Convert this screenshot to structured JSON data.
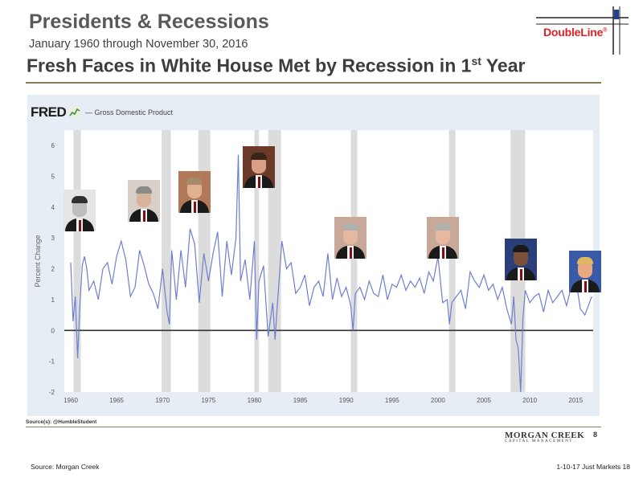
{
  "slide": {
    "title": "Presidents & Recessions",
    "subtitle": "January 1960 through November 30, 2016",
    "logo_text": "DoubleLine",
    "logo_reg": "®"
  },
  "panel": {
    "headline_main": "Fresh Faces in White House Met by Recession in 1",
    "headline_sup": "st",
    "headline_end": " Year",
    "fred_label": "FRED",
    "series_legend": "— Gross Domestic Product",
    "source_text": "Source(s): @HumbleStudent",
    "mc_name": "MORGAN CREEK",
    "mc_sub": "CAPITAL MANAGEMENT",
    "page_number": "8"
  },
  "footer": {
    "source": "Source:  Morgan Creek",
    "right_text": "1-10-17 Just Markets  18"
  },
  "colors": {
    "line": "#6f7fcf",
    "recession": "#dcdcdc",
    "plot_bg": "#e7edf5",
    "zero_line": "#333333",
    "logo_red": "#e01f26"
  },
  "chart_data": {
    "type": "line",
    "title": "",
    "xlabel": "",
    "ylabel": "Percent Change",
    "xlim": [
      1959.3,
      2016.9
    ],
    "ylim": [
      -2,
      6.5
    ],
    "yticks": [
      -2,
      -1,
      0,
      1,
      2,
      3,
      4,
      5,
      6
    ],
    "xticks": [
      1960,
      1965,
      1970,
      1975,
      1980,
      1985,
      1990,
      1995,
      2000,
      2005,
      2010,
      2015
    ],
    "grid": false,
    "legend": "top-left",
    "series": [
      {
        "name": "Gross Domestic Product",
        "x": [
          1960.0,
          1960.25,
          1960.5,
          1960.75,
          1961.0,
          1961.25,
          1961.5,
          1961.75,
          1962.0,
          1962.5,
          1963.0,
          1963.5,
          1964.0,
          1964.5,
          1965.0,
          1965.5,
          1966.0,
          1966.5,
          1967.0,
          1967.5,
          1968.0,
          1968.5,
          1969.0,
          1969.5,
          1970.0,
          1970.5,
          1970.75,
          1971.0,
          1971.5,
          1972.0,
          1972.5,
          1973.0,
          1973.5,
          1974.0,
          1974.5,
          1975.0,
          1975.5,
          1976.0,
          1976.5,
          1977.0,
          1977.5,
          1978.0,
          1978.25,
          1978.5,
          1979.0,
          1979.5,
          1980.0,
          1980.25,
          1980.5,
          1981.0,
          1981.5,
          1982.0,
          1982.25,
          1982.5,
          1983.0,
          1983.5,
          1984.0,
          1984.5,
          1985.0,
          1985.5,
          1986.0,
          1986.5,
          1987.0,
          1987.5,
          1988.0,
          1988.5,
          1989.0,
          1989.5,
          1990.0,
          1990.5,
          1990.75,
          1991.0,
          1991.5,
          1992.0,
          1992.5,
          1993.0,
          1993.5,
          1994.0,
          1994.5,
          1995.0,
          1995.5,
          1996.0,
          1996.5,
          1997.0,
          1997.5,
          1998.0,
          1998.5,
          1999.0,
          1999.5,
          2000.0,
          2000.5,
          2001.0,
          2001.25,
          2001.5,
          2002.0,
          2002.5,
          2003.0,
          2003.5,
          2004.0,
          2004.5,
          2005.0,
          2005.5,
          2006.0,
          2006.5,
          2007.0,
          2007.5,
          2008.0,
          2008.25,
          2008.5,
          2008.75,
          2009.0,
          2009.25,
          2009.5,
          2010.0,
          2010.5,
          2011.0,
          2011.5,
          2012.0,
          2012.5,
          2013.0,
          2013.5,
          2014.0,
          2014.5,
          2015.0,
          2015.5,
          2016.0,
          2016.5,
          2016.75
        ],
        "y": [
          2.2,
          0.3,
          1.1,
          -0.9,
          0.8,
          2.1,
          2.4,
          2.0,
          1.3,
          1.6,
          1.0,
          2.0,
          2.2,
          1.5,
          2.4,
          2.9,
          2.3,
          1.1,
          1.4,
          2.6,
          2.1,
          1.5,
          1.2,
          0.7,
          2.0,
          0.6,
          0.2,
          2.6,
          1.0,
          2.6,
          1.4,
          3.3,
          2.8,
          0.9,
          2.5,
          1.6,
          2.5,
          3.2,
          1.1,
          2.9,
          1.8,
          3.0,
          5.7,
          1.6,
          2.3,
          1.0,
          2.9,
          -0.3,
          1.6,
          2.1,
          -0.2,
          0.9,
          -0.3,
          0.8,
          2.9,
          2.0,
          2.2,
          1.2,
          1.4,
          1.8,
          0.8,
          1.4,
          1.6,
          1.1,
          2.5,
          1.0,
          1.7,
          1.1,
          1.4,
          0.8,
          0.0,
          1.2,
          1.4,
          1.0,
          1.6,
          1.2,
          1.1,
          1.8,
          1.0,
          1.5,
          1.4,
          1.8,
          1.3,
          1.6,
          1.4,
          1.7,
          1.2,
          1.9,
          1.6,
          2.4,
          0.9,
          1.0,
          0.2,
          0.9,
          1.1,
          1.3,
          0.7,
          1.9,
          1.6,
          1.4,
          1.8,
          1.3,
          1.5,
          1.0,
          1.4,
          0.7,
          0.2,
          1.1,
          -0.3,
          -0.6,
          -2.0,
          0.4,
          1.3,
          0.9,
          1.1,
          1.2,
          0.6,
          1.3,
          0.9,
          1.1,
          1.3,
          0.8,
          1.4,
          1.7,
          0.7,
          0.5,
          0.9,
          1.1
        ]
      }
    ],
    "recessions": [
      [
        1960.3,
        1961.1
      ],
      [
        1969.9,
        1970.9
      ],
      [
        1973.9,
        1975.2
      ],
      [
        1980.0,
        1980.5
      ],
      [
        1981.5,
        1982.9
      ],
      [
        1990.5,
        1991.2
      ],
      [
        2001.2,
        2001.9
      ],
      [
        2007.9,
        2009.5
      ]
    ],
    "presidents": [
      {
        "name": "Kennedy",
        "x": 1961.0
      },
      {
        "name": "Johnson",
        "x": 1968.0
      },
      {
        "name": "Carter",
        "x": 1973.5
      },
      {
        "name": "Reagan",
        "x": 1980.5
      },
      {
        "name": "Bush",
        "x": 1990.5
      },
      {
        "name": "Bush",
        "x": 2000.5
      },
      {
        "name": "Obama",
        "x": 2009.0
      },
      {
        "name": "Trump",
        "x": 2016.0
      }
    ]
  }
}
